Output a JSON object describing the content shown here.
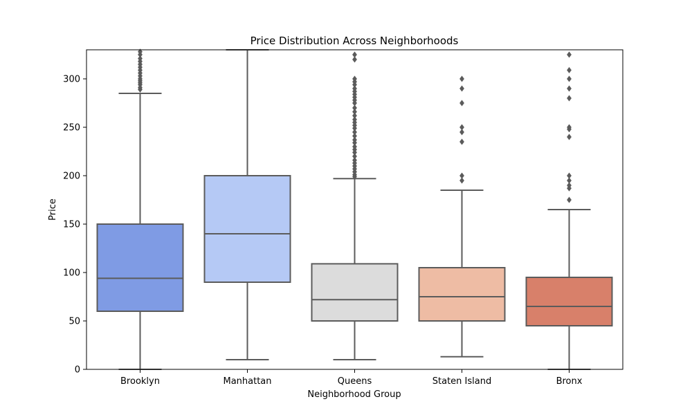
{
  "chart_data": {
    "type": "box",
    "title": "Price Distribution Across Neighborhoods",
    "xlabel": "Neighborhood Group",
    "ylabel": "Price",
    "ylim": [
      0,
      330
    ],
    "yticks": [
      0,
      50,
      100,
      150,
      200,
      250,
      300
    ],
    "categories": [
      "Brooklyn",
      "Manhattan",
      "Queens",
      "Staten Island",
      "Bronx"
    ],
    "colors": [
      "#7f9be4",
      "#b5c9f5",
      "#dcdcdc",
      "#eebca4",
      "#d8806a"
    ],
    "line_color": "#5b5b5b",
    "grid": false,
    "boxes": [
      {
        "whislo": 0,
        "q1": 60,
        "med": 94,
        "q3": 150,
        "whishi": 285,
        "fliers": [
          289,
          291,
          294,
          296,
          298,
          300,
          303,
          306,
          309,
          312,
          315,
          318,
          321,
          325,
          328
        ]
      },
      {
        "whislo": 10,
        "q1": 90,
        "med": 140,
        "q3": 200,
        "whishi": 330,
        "fliers": []
      },
      {
        "whislo": 10,
        "q1": 50,
        "med": 72,
        "q3": 109,
        "whishi": 197,
        "fliers": [
          199,
          201,
          204,
          207,
          210,
          213,
          216,
          220,
          224,
          227,
          230,
          234,
          237,
          241,
          245,
          249,
          252,
          255,
          258,
          262,
          266,
          270,
          275,
          278,
          281,
          284,
          287,
          290,
          294,
          297,
          300,
          320,
          325
        ]
      },
      {
        "whislo": 13,
        "q1": 50,
        "med": 75,
        "q3": 105,
        "whishi": 185,
        "fliers": [
          195,
          200,
          235,
          245,
          250,
          275,
          290,
          300
        ]
      },
      {
        "whislo": 0,
        "q1": 45,
        "med": 65,
        "q3": 95,
        "whishi": 165,
        "fliers": [
          175,
          187,
          190,
          195,
          200,
          240,
          248,
          250,
          280,
          290,
          300,
          309,
          325
        ]
      }
    ]
  }
}
